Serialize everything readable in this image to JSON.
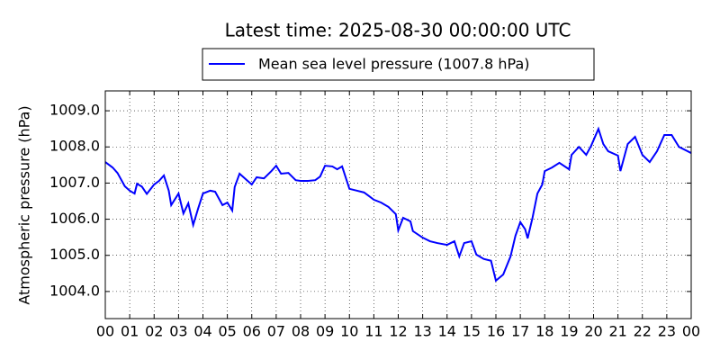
{
  "chart_data": {
    "type": "line",
    "title": "Latest time: 2025-08-30 00:00:00 UTC",
    "ylabel": "Atmospheric pressure (hPa)",
    "xlim": [
      0,
      24
    ],
    "xticks": [
      {
        "value": 0,
        "label": "00"
      },
      {
        "value": 1,
        "label": "01"
      },
      {
        "value": 2,
        "label": "02"
      },
      {
        "value": 3,
        "label": "03"
      },
      {
        "value": 4,
        "label": "04"
      },
      {
        "value": 5,
        "label": "05"
      },
      {
        "value": 6,
        "label": "06"
      },
      {
        "value": 7,
        "label": "07"
      },
      {
        "value": 8,
        "label": "08"
      },
      {
        "value": 9,
        "label": "09"
      },
      {
        "value": 10,
        "label": "10"
      },
      {
        "value": 11,
        "label": "11"
      },
      {
        "value": 12,
        "label": "12"
      },
      {
        "value": 13,
        "label": "13"
      },
      {
        "value": 14,
        "label": "14"
      },
      {
        "value": 15,
        "label": "15"
      },
      {
        "value": 16,
        "label": "16"
      },
      {
        "value": 17,
        "label": "17"
      },
      {
        "value": 18,
        "label": "18"
      },
      {
        "value": 19,
        "label": "19"
      },
      {
        "value": 20,
        "label": "20"
      },
      {
        "value": 21,
        "label": "21"
      },
      {
        "value": 22,
        "label": "22"
      },
      {
        "value": 23,
        "label": "23"
      },
      {
        "value": 24,
        "label": "00"
      }
    ],
    "ylim": [
      1003.25,
      1009.55
    ],
    "yticks": [
      {
        "value": 1004,
        "label": "1004.0"
      },
      {
        "value": 1005,
        "label": "1005.0"
      },
      {
        "value": 1006,
        "label": "1006.0"
      },
      {
        "value": 1007,
        "label": "1007.0"
      },
      {
        "value": 1008,
        "label": "1008.0"
      },
      {
        "value": 1009,
        "label": "1009.0"
      }
    ],
    "grid": true,
    "legend": "upper center",
    "x": [
      0,
      0.3,
      0.5,
      0.8,
      1.0,
      1.2,
      1.3,
      1.5,
      1.7,
      2.0,
      2.2,
      2.4,
      2.6,
      2.7,
      3.0,
      3.2,
      3.4,
      3.6,
      3.8,
      4.0,
      4.3,
      4.5,
      4.8,
      5.0,
      5.2,
      5.3,
      5.5,
      5.8,
      6.0,
      6.2,
      6.5,
      6.8,
      7.0,
      7.2,
      7.5,
      7.8,
      8.0,
      8.3,
      8.6,
      8.8,
      9.0,
      9.3,
      9.5,
      9.7,
      10.0,
      10.3,
      10.6,
      10.8,
      11.0,
      11.3,
      11.6,
      11.9,
      12.0,
      12.2,
      12.5,
      12.6,
      13.0,
      13.3,
      13.6,
      14.0,
      14.3,
      14.5,
      14.7,
      15.0,
      15.2,
      15.5,
      15.8,
      16.0,
      16.3,
      16.6,
      16.8,
      17.0,
      17.2,
      17.3,
      17.5,
      17.7,
      17.9,
      18.0,
      18.3,
      18.6,
      19.0,
      19.1,
      19.4,
      19.7,
      19.9,
      20.2,
      20.4,
      20.6,
      21.0,
      21.1,
      21.4,
      21.7,
      22.0,
      22.3,
      22.6,
      22.9,
      23.2,
      23.5,
      24.0
    ],
    "series": [
      {
        "name": "Mean sea level pressure (1007.8 hPa)",
        "color": "#0000ff",
        "values": [
          1007.58,
          1007.43,
          1007.28,
          1006.91,
          1006.79,
          1006.71,
          1006.98,
          1006.9,
          1006.7,
          1006.96,
          1007.06,
          1007.21,
          1006.79,
          1006.39,
          1006.71,
          1006.16,
          1006.44,
          1005.84,
          1006.29,
          1006.71,
          1006.79,
          1006.76,
          1006.39,
          1006.46,
          1006.24,
          1006.89,
          1007.26,
          1007.08,
          1006.96,
          1007.16,
          1007.13,
          1007.33,
          1007.48,
          1007.26,
          1007.28,
          1007.08,
          1007.06,
          1007.06,
          1007.08,
          1007.18,
          1007.48,
          1007.46,
          1007.38,
          1007.46,
          1006.84,
          1006.79,
          1006.74,
          1006.64,
          1006.54,
          1006.46,
          1006.34,
          1006.14,
          1005.69,
          1006.04,
          1005.94,
          1005.67,
          1005.49,
          1005.39,
          1005.34,
          1005.29,
          1005.39,
          1004.97,
          1005.34,
          1005.39,
          1005.02,
          1004.9,
          1004.85,
          1004.3,
          1004.47,
          1004.97,
          1005.54,
          1005.92,
          1005.72,
          1005.47,
          1006.04,
          1006.71,
          1006.96,
          1007.33,
          1007.43,
          1007.56,
          1007.38,
          1007.78,
          1008.0,
          1007.78,
          1008.03,
          1008.5,
          1008.08,
          1007.88,
          1007.76,
          1007.33,
          1008.08,
          1008.28,
          1007.78,
          1007.58,
          1007.88,
          1008.33,
          1008.33,
          1008.0,
          1007.83
        ]
      }
    ]
  }
}
